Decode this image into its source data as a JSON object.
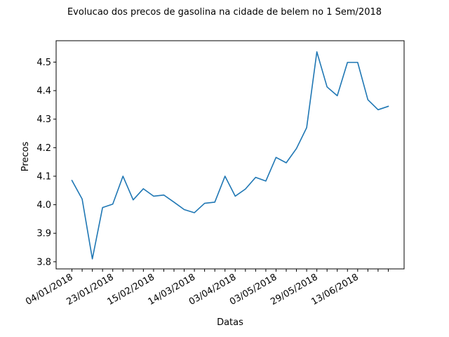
{
  "chart_data": {
    "type": "line",
    "title": "Evolucao dos precos de gasolina na cidade de belem no 1 Sem/2018",
    "xlabel": "Datas",
    "ylabel": "Precos",
    "ylim": [
      3.775,
      4.575
    ],
    "yticks": [
      3.8,
      3.9,
      4.0,
      4.1,
      4.2,
      4.3,
      4.4,
      4.5
    ],
    "ytick_labels": [
      "3.8",
      "3.9",
      "4.0",
      "4.1",
      "4.2",
      "4.3",
      "4.4",
      "4.5"
    ],
    "xtick_labels": [
      "04/01/2018",
      "23/01/2018",
      "15/02/2018",
      "14/03/2018",
      "03/04/2018",
      "03/05/2018",
      "29/05/2018",
      "13/06/2018"
    ],
    "xtick_label_every": 4,
    "grid": false,
    "line_color": "#1f77b4",
    "series": [
      {
        "values": [
          4.085,
          4.02,
          3.81,
          3.99,
          4.002,
          4.1,
          4.017,
          4.056,
          4.03,
          4.034,
          4.009,
          3.983,
          3.972,
          4.005,
          4.009,
          4.1,
          4.03,
          4.055,
          4.096,
          4.083,
          4.166,
          4.147,
          4.197,
          4.27,
          4.536,
          4.413,
          4.382,
          4.499,
          4.499,
          4.368,
          4.333,
          4.345
        ]
      }
    ]
  }
}
